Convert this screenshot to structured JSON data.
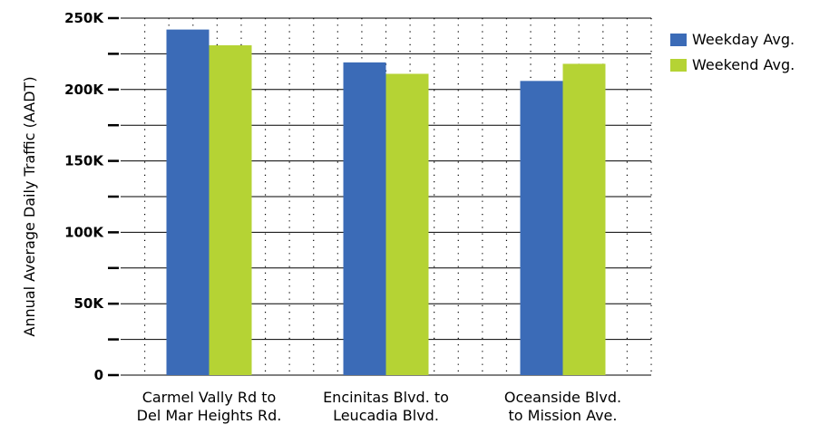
{
  "chart_data": {
    "type": "bar",
    "title": "",
    "xlabel": "",
    "ylabel": "Annual Average Daily Traffic (AADT)",
    "categories": [
      [
        "Carmel Vally Rd to",
        "Del Mar Heights Rd."
      ],
      [
        "Encinitas Blvd. to",
        "Leucadia Blvd."
      ],
      [
        "Oceanside Blvd.",
        "to Mission Ave."
      ]
    ],
    "series": [
      {
        "name": "Weekday Avg.",
        "color": "#3b6bb7",
        "values": [
          242000,
          219000,
          206000
        ]
      },
      {
        "name": "Weekend Avg.",
        "color": "#b5d334",
        "values": [
          231000,
          211000,
          218000
        ]
      }
    ],
    "ylim": [
      0,
      250000
    ],
    "yticks": [
      {
        "value": 0,
        "label": "0"
      },
      {
        "value": 25000,
        "label": ""
      },
      {
        "value": 50000,
        "label": "50K"
      },
      {
        "value": 75000,
        "label": ""
      },
      {
        "value": 100000,
        "label": "100K"
      },
      {
        "value": 125000,
        "label": ""
      },
      {
        "value": 150000,
        "label": "150K"
      },
      {
        "value": 175000,
        "label": ""
      },
      {
        "value": 200000,
        "label": "200K"
      },
      {
        "value": 225000,
        "label": ""
      },
      {
        "value": 250000,
        "label": "250K"
      }
    ],
    "grid": true,
    "legend_position": "top-right"
  }
}
